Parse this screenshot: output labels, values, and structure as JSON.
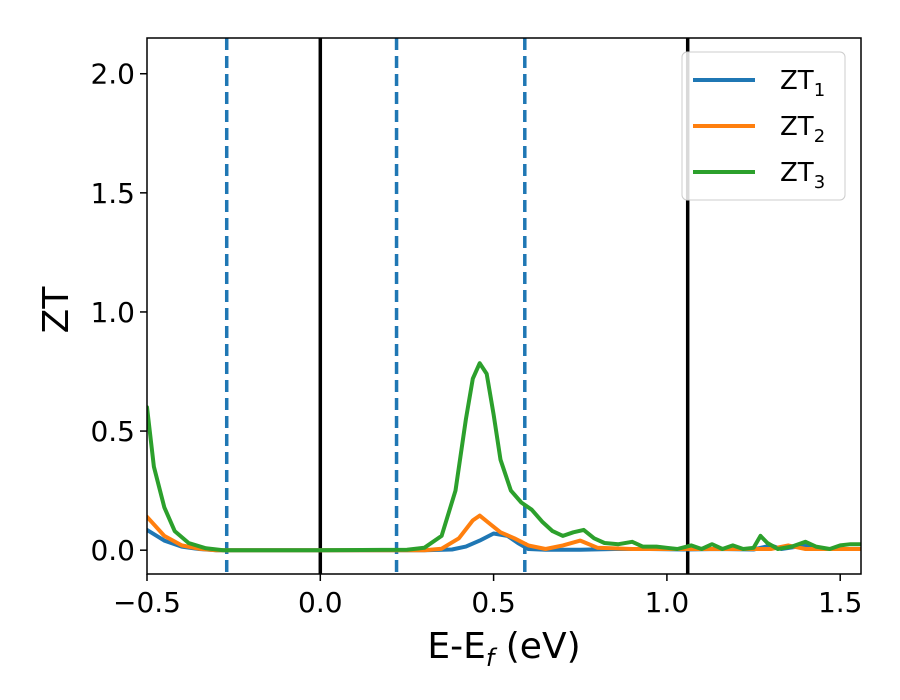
{
  "chart_data": {
    "type": "line",
    "xlabel": {
      "main": "E-E",
      "sub": "f",
      "unit": " (eV)"
    },
    "ylabel": "ZT",
    "xlim": [
      -0.5,
      1.56
    ],
    "ylim": [
      -0.1,
      2.15
    ],
    "xticks": [
      {
        "value": -0.5,
        "label": "−0.5"
      },
      {
        "value": 0.0,
        "label": "0.0"
      },
      {
        "value": 0.5,
        "label": "0.5"
      },
      {
        "value": 1.0,
        "label": "1.0"
      },
      {
        "value": 1.5,
        "label": "1.5"
      }
    ],
    "yticks": [
      {
        "value": 0.0,
        "label": "0.0"
      },
      {
        "value": 0.5,
        "label": "0.5"
      },
      {
        "value": 1.0,
        "label": "1.0"
      },
      {
        "value": 1.5,
        "label": "1.5"
      },
      {
        "value": 2.0,
        "label": "2.0"
      }
    ],
    "grid": false,
    "legend_position": "top-right",
    "vertical_lines": [
      {
        "x": -0.27,
        "style": "dashed",
        "color": "#1f77b4"
      },
      {
        "x": 0.0,
        "style": "solid",
        "color": "#000000"
      },
      {
        "x": 0.22,
        "style": "dashed",
        "color": "#1f77b4"
      },
      {
        "x": 0.59,
        "style": "dashed",
        "color": "#1f77b4"
      },
      {
        "x": 1.06,
        "style": "solid",
        "color": "#000000"
      }
    ],
    "series": [
      {
        "name": "ZT",
        "sub": "1",
        "color": "#1f77b4",
        "points": [
          [
            -0.5,
            0.085
          ],
          [
            -0.45,
            0.04
          ],
          [
            -0.4,
            0.015
          ],
          [
            -0.35,
            0.005
          ],
          [
            -0.3,
            0.0
          ],
          [
            0.0,
            0.0
          ],
          [
            0.3,
            0.0
          ],
          [
            0.38,
            0.003
          ],
          [
            0.42,
            0.015
          ],
          [
            0.46,
            0.04
          ],
          [
            0.5,
            0.07
          ],
          [
            0.54,
            0.06
          ],
          [
            0.57,
            0.03
          ],
          [
            0.6,
            0.005
          ],
          [
            0.65,
            0.002
          ],
          [
            0.75,
            0.002
          ],
          [
            0.85,
            0.005
          ],
          [
            0.95,
            0.005
          ],
          [
            1.05,
            0.003
          ],
          [
            1.15,
            0.005
          ],
          [
            1.25,
            0.003
          ],
          [
            1.3,
            0.02
          ],
          [
            1.33,
            0.005
          ],
          [
            1.4,
            0.02
          ],
          [
            1.45,
            0.005
          ],
          [
            1.56,
            0.005
          ]
        ]
      },
      {
        "name": "ZT",
        "sub": "2",
        "color": "#ff7f0e",
        "points": [
          [
            -0.5,
            0.14
          ],
          [
            -0.45,
            0.06
          ],
          [
            -0.4,
            0.02
          ],
          [
            -0.35,
            0.006
          ],
          [
            -0.3,
            0.0
          ],
          [
            0.0,
            0.0
          ],
          [
            0.3,
            0.0
          ],
          [
            0.35,
            0.006
          ],
          [
            0.4,
            0.05
          ],
          [
            0.44,
            0.125
          ],
          [
            0.46,
            0.145
          ],
          [
            0.49,
            0.11
          ],
          [
            0.52,
            0.075
          ],
          [
            0.56,
            0.05
          ],
          [
            0.6,
            0.02
          ],
          [
            0.65,
            0.005
          ],
          [
            0.7,
            0.02
          ],
          [
            0.75,
            0.04
          ],
          [
            0.8,
            0.01
          ],
          [
            0.9,
            0.005
          ],
          [
            1.0,
            0.005
          ],
          [
            1.1,
            0.005
          ],
          [
            1.2,
            0.005
          ],
          [
            1.3,
            0.005
          ],
          [
            1.35,
            0.02
          ],
          [
            1.4,
            0.005
          ],
          [
            1.56,
            0.005
          ]
        ]
      },
      {
        "name": "ZT",
        "sub": "3",
        "color": "#2ca02c",
        "points": [
          [
            -0.5,
            0.6
          ],
          [
            -0.48,
            0.35
          ],
          [
            -0.45,
            0.18
          ],
          [
            -0.42,
            0.08
          ],
          [
            -0.38,
            0.03
          ],
          [
            -0.33,
            0.008
          ],
          [
            -0.28,
            0.0
          ],
          [
            0.0,
            0.0
          ],
          [
            0.25,
            0.002
          ],
          [
            0.3,
            0.01
          ],
          [
            0.35,
            0.06
          ],
          [
            0.39,
            0.25
          ],
          [
            0.42,
            0.55
          ],
          [
            0.44,
            0.72
          ],
          [
            0.46,
            0.785
          ],
          [
            0.48,
            0.74
          ],
          [
            0.5,
            0.57
          ],
          [
            0.52,
            0.38
          ],
          [
            0.55,
            0.25
          ],
          [
            0.58,
            0.2
          ],
          [
            0.61,
            0.17
          ],
          [
            0.64,
            0.12
          ],
          [
            0.67,
            0.08
          ],
          [
            0.7,
            0.06
          ],
          [
            0.73,
            0.075
          ],
          [
            0.76,
            0.085
          ],
          [
            0.79,
            0.05
          ],
          [
            0.82,
            0.03
          ],
          [
            0.86,
            0.025
          ],
          [
            0.9,
            0.035
          ],
          [
            0.93,
            0.015
          ],
          [
            0.97,
            0.015
          ],
          [
            1.0,
            0.01
          ],
          [
            1.03,
            0.005
          ],
          [
            1.07,
            0.02
          ],
          [
            1.1,
            0.005
          ],
          [
            1.13,
            0.025
          ],
          [
            1.16,
            0.005
          ],
          [
            1.19,
            0.02
          ],
          [
            1.22,
            0.005
          ],
          [
            1.25,
            0.01
          ],
          [
            1.27,
            0.06
          ],
          [
            1.29,
            0.03
          ],
          [
            1.32,
            0.005
          ],
          [
            1.36,
            0.015
          ],
          [
            1.4,
            0.035
          ],
          [
            1.43,
            0.015
          ],
          [
            1.47,
            0.005
          ],
          [
            1.5,
            0.02
          ],
          [
            1.53,
            0.025
          ],
          [
            1.56,
            0.025
          ]
        ]
      }
    ]
  }
}
